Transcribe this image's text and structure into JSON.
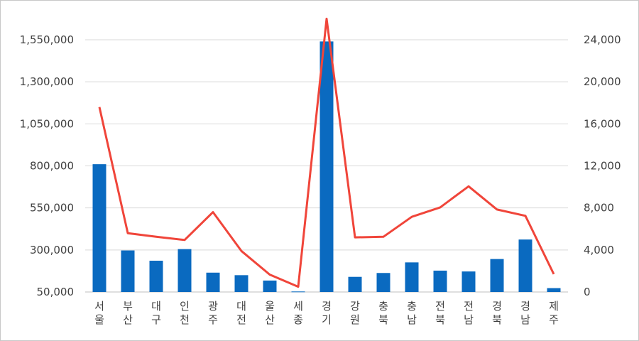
{
  "chart_data": {
    "type": "bar+line",
    "title": "",
    "categories": [
      "서울",
      "부산",
      "대구",
      "인천",
      "광주",
      "대전",
      "울산",
      "세종",
      "경기",
      "강원",
      "충북",
      "충남",
      "전북",
      "전남",
      "경북",
      "경남",
      "제주"
    ],
    "series": [
      {
        "type": "bar",
        "axis": "left",
        "color": "#0a6ac0",
        "values": [
          810000,
          297000,
          236000,
          305000,
          165000,
          150000,
          118000,
          53000,
          1540000,
          140000,
          163000,
          226000,
          177000,
          172000,
          246000,
          362000,
          73000
        ]
      },
      {
        "type": "line",
        "axis": "right",
        "color": "#f0453a",
        "values": [
          17600,
          5600,
          5250,
          4950,
          7600,
          3900,
          1650,
          500,
          26000,
          5200,
          5250,
          7150,
          8050,
          10050,
          7850,
          7250,
          1700
        ]
      }
    ],
    "y_left": {
      "min": 50000,
      "max": 1550000,
      "ticks": [
        "50,000",
        "300,000",
        "550,000",
        "800,000",
        "1,050,000",
        "1,300,000",
        "1,550,000"
      ]
    },
    "y_right": {
      "min": 0,
      "max": 24000,
      "ticks": [
        "0",
        "4,000",
        "8,000",
        "12,000",
        "16,000",
        "20,000",
        "24,000"
      ]
    },
    "grid": true,
    "legend": "none"
  }
}
